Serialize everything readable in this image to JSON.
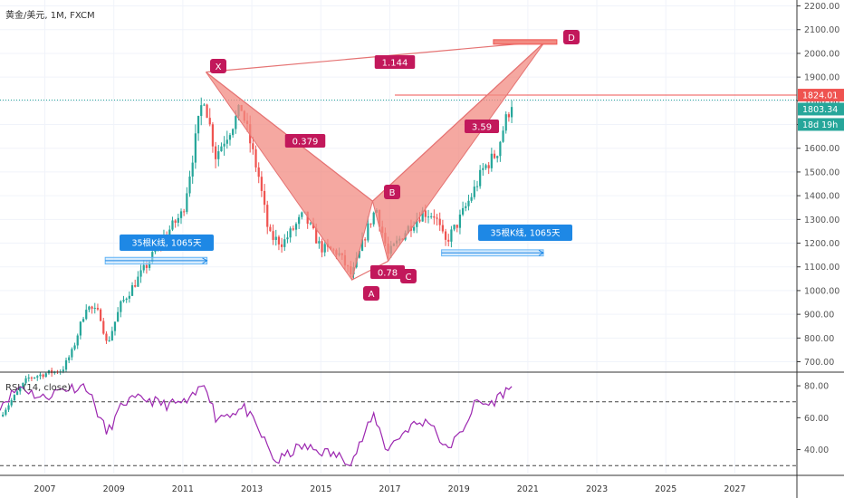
{
  "header": {
    "symbol": "黄金/美元",
    "interval": "1M",
    "source": "FXCM"
  },
  "colors": {
    "up": "#26a69a",
    "down": "#ef5350",
    "pattern_fill": "#f28b82",
    "pattern_stroke": "#e57373",
    "point_bg": "#c2185b",
    "ratio_bg": "#c2185b",
    "range_bg": "#1e88e5",
    "rsi_line": "#9c27b0",
    "price_line": "#26a69a",
    "target_line": "#ef5350"
  },
  "price_tags": {
    "target": {
      "value": "1824.01",
      "level": 1824.01,
      "color": "#ef5350"
    },
    "last": {
      "value": "1803.34",
      "level": 1803.34,
      "color": "#26a69a"
    },
    "countdown": {
      "value": "18d 19h",
      "color": "#26a69a"
    }
  },
  "chart_data": [
    {
      "type": "candlestick",
      "title": "黄金/美元, 1M, FXCM",
      "x_axis": {
        "range": [
          2005.7,
          2028.8
        ],
        "ticks": [
          "2007",
          "2009",
          "2011",
          "2013",
          "2015",
          "2017",
          "2019",
          "2021",
          "2023",
          "2025",
          "2027"
        ]
      },
      "y_axis": {
        "range": [
          660,
          2225
        ],
        "ticks": [
          "700.00",
          "800.00",
          "900.00",
          "1000.00",
          "1100.00",
          "1200.00",
          "1300.00",
          "1400.00",
          "1500.00",
          "1600.00",
          "1700.00",
          "1800.00",
          "1900.00",
          "2000.00",
          "2100.00",
          "2200.00"
        ]
      },
      "monthly_close_anchors": [
        [
          2005.7,
          470
        ],
        [
          2006.5,
          630
        ],
        [
          2007.0,
          650
        ],
        [
          2007.5,
          665
        ],
        [
          2007.8,
          745
        ],
        [
          2008.2,
          935
        ],
        [
          2008.6,
          900
        ],
        [
          2008.8,
          770
        ],
        [
          2009.2,
          940
        ],
        [
          2009.9,
          1095
        ],
        [
          2010.5,
          1235
        ],
        [
          2011.0,
          1330
        ],
        [
          2011.6,
          1830
        ],
        [
          2011.95,
          1570
        ],
        [
          2012.7,
          1770
        ],
        [
          2013.2,
          1480
        ],
        [
          2013.5,
          1230
        ],
        [
          2013.9,
          1200
        ],
        [
          2014.5,
          1320
        ],
        [
          2015.0,
          1180
        ],
        [
          2015.5,
          1160
        ],
        [
          2015.9,
          1060
        ],
        [
          2016.3,
          1240
        ],
        [
          2016.6,
          1350
        ],
        [
          2016.95,
          1150
        ],
        [
          2017.5,
          1260
        ],
        [
          2017.95,
          1330
        ],
        [
          2018.3,
          1320
        ],
        [
          2018.6,
          1200
        ],
        [
          2018.95,
          1280
        ],
        [
          2019.4,
          1410
        ],
        [
          2019.7,
          1510
        ],
        [
          2020.1,
          1580
        ],
        [
          2020.3,
          1690
        ],
        [
          2020.5,
          1780
        ],
        [
          2020.55,
          1803.34
        ]
      ],
      "harmonic_pattern": {
        "points": [
          {
            "label": "X",
            "x": 2011.67,
            "y": 1921
          },
          {
            "label": "A",
            "x": 2015.9,
            "y": 1045
          },
          {
            "label": "B",
            "x": 2016.5,
            "y": 1377
          },
          {
            "label": "C",
            "x": 2016.95,
            "y": 1124
          },
          {
            "label": "D",
            "x": 2021.5,
            "y": 2050
          }
        ],
        "ratios": [
          {
            "label": "1.144",
            "between": "X-D"
          },
          {
            "label": "0.379",
            "between": "X-B"
          },
          {
            "label": "0.78",
            "between": "A-C"
          },
          {
            "label": "3.59",
            "between": "B-D"
          }
        ]
      },
      "range_boxes": [
        {
          "label": "35根K线, 1065天",
          "x": [
            2008.75,
            2011.7
          ],
          "y": [
            1112,
            1140
          ]
        },
        {
          "label": "35根K线, 1065天",
          "x": [
            2018.5,
            2021.45
          ],
          "y": [
            1146,
            1172
          ]
        }
      ],
      "horizontal_levels": [
        1824.01,
        1803.34
      ]
    },
    {
      "type": "line",
      "title": "RSI (14, close)",
      "y_axis": {
        "range": [
          25,
          88
        ],
        "ticks": [
          "40.00",
          "60.00",
          "80.00"
        ]
      },
      "bands": [
        30,
        70
      ],
      "anchors": [
        [
          2005.7,
          68
        ],
        [
          2006.3,
          80
        ],
        [
          2006.9,
          72
        ],
        [
          2007.5,
          78
        ],
        [
          2008.2,
          80
        ],
        [
          2008.8,
          50
        ],
        [
          2009.3,
          70
        ],
        [
          2009.9,
          72
        ],
        [
          2010.5,
          68
        ],
        [
          2011.2,
          70
        ],
        [
          2011.65,
          83
        ],
        [
          2011.95,
          60
        ],
        [
          2012.8,
          66
        ],
        [
          2013.3,
          48
        ],
        [
          2013.7,
          32
        ],
        [
          2014.4,
          42
        ],
        [
          2015.2,
          38
        ],
        [
          2015.9,
          33
        ],
        [
          2016.55,
          62
        ],
        [
          2016.9,
          40
        ],
        [
          2017.6,
          55
        ],
        [
          2018.2,
          58
        ],
        [
          2018.6,
          40
        ],
        [
          2019.0,
          48
        ],
        [
          2019.5,
          70
        ],
        [
          2019.9,
          68
        ],
        [
          2020.3,
          76
        ],
        [
          2020.55,
          79
        ]
      ]
    }
  ]
}
